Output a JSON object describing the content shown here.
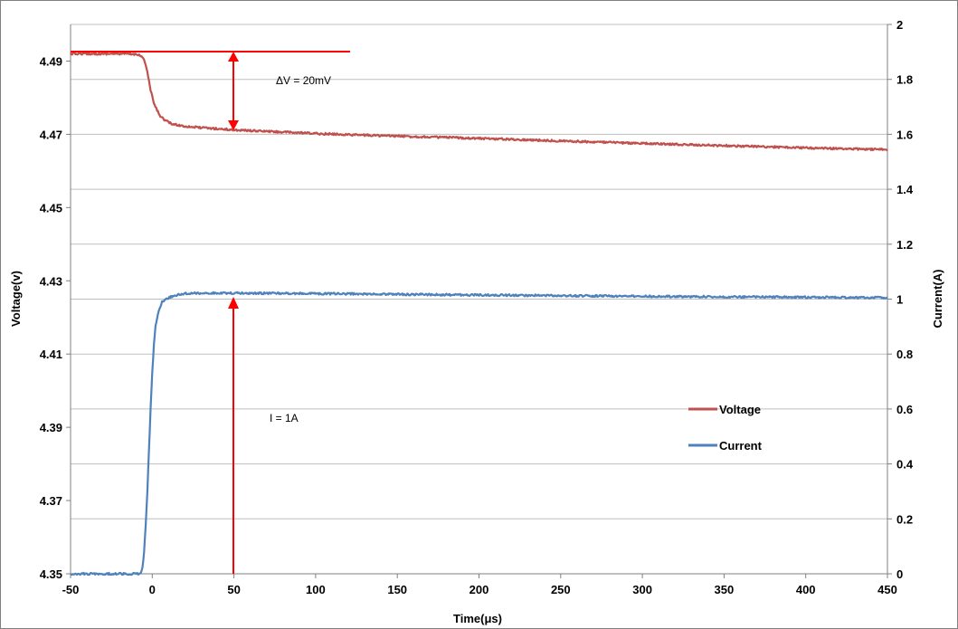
{
  "chart_data": {
    "type": "line",
    "title": "",
    "xlabel": "Time(μs)",
    "ylabel_left": "Voltage(v)",
    "ylabel_right": "Current(A)",
    "xlim": [
      -50,
      450
    ],
    "ylim_left": [
      4.35,
      4.5
    ],
    "ylim_right": [
      0,
      2
    ],
    "x_ticks": [
      "-50",
      "0",
      "50",
      "100",
      "150",
      "200",
      "250",
      "300",
      "350",
      "400",
      "450"
    ],
    "y_left_ticks": [
      "4.35",
      "4.37",
      "4.39",
      "4.41",
      "4.43",
      "4.45",
      "4.47",
      "4.49"
    ],
    "y_right_ticks": [
      "0",
      "0.2",
      "0.4",
      "0.6",
      "0.8",
      "1",
      "1.2",
      "1.4",
      "1.6",
      "1.8",
      "2"
    ],
    "grid": "horizontal",
    "legend_position": "right",
    "series": [
      {
        "name": "Voltage",
        "axis": "left",
        "color": "#c0504d",
        "x": [
          -50,
          -20,
          -8,
          -5,
          -3,
          -1,
          1,
          3,
          5,
          8,
          12,
          20,
          30,
          50,
          100,
          150,
          200,
          250,
          300,
          350,
          400,
          450
        ],
        "y": [
          4.492,
          4.492,
          4.4918,
          4.4905,
          4.487,
          4.482,
          4.4785,
          4.4765,
          4.475,
          4.4738,
          4.4728,
          4.4722,
          4.4718,
          4.4712,
          4.4702,
          4.4695,
          4.4689,
          4.4682,
          4.4675,
          4.4669,
          4.4663,
          4.4658
        ]
      },
      {
        "name": "Current",
        "axis": "right",
        "color": "#4f81bd",
        "x": [
          -50,
          -7,
          -6,
          -5,
          -4,
          -3,
          -2,
          -1,
          0,
          1,
          2,
          4,
          6,
          10,
          15,
          20,
          30,
          50,
          100,
          200,
          300,
          400,
          450
        ],
        "y": [
          0,
          0,
          0.02,
          0.08,
          0.18,
          0.3,
          0.45,
          0.6,
          0.73,
          0.83,
          0.9,
          0.96,
          0.99,
          1.005,
          1.015,
          1.02,
          1.022,
          1.022,
          1.02,
          1.015,
          1.01,
          1.007,
          1.005
        ]
      }
    ],
    "annotations": {
      "delta_v": "ΔV = 20mV",
      "current": "I = 1A"
    }
  }
}
